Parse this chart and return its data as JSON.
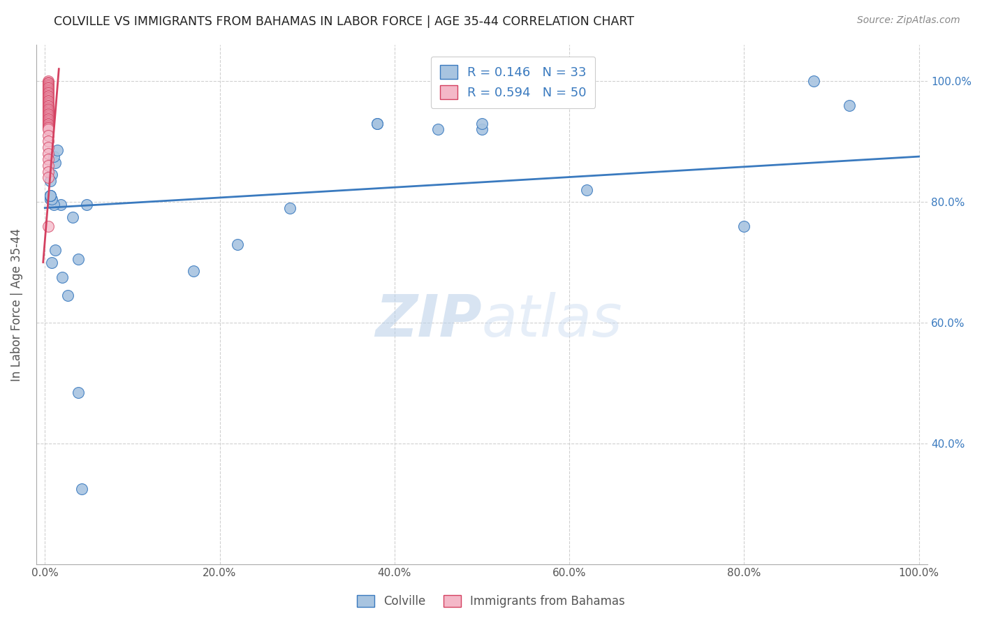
{
  "title": "COLVILLE VS IMMIGRANTS FROM BAHAMAS IN LABOR FORCE | AGE 35-44 CORRELATION CHART",
  "source": "Source: ZipAtlas.com",
  "ylabel": "In Labor Force | Age 35-44",
  "legend_label_blue": "Colville",
  "legend_label_pink": "Immigrants from Bahamas",
  "r_blue": 0.146,
  "n_blue": 33,
  "r_pink": 0.594,
  "n_pink": 50,
  "xlim": [
    -0.01,
    1.01
  ],
  "ylim": [
    0.2,
    1.06
  ],
  "xtick_labels": [
    "0.0%",
    "20.0%",
    "40.0%",
    "60.0%",
    "80.0%",
    "100.0%"
  ],
  "xtick_values": [
    0.0,
    0.2,
    0.4,
    0.6,
    0.8,
    1.0
  ],
  "ytick_labels": [
    "40.0%",
    "60.0%",
    "80.0%",
    "100.0%"
  ],
  "ytick_values": [
    0.4,
    0.6,
    0.8,
    1.0
  ],
  "watermark": "ZIPatlas",
  "blue_scatter_x": [
    0.006,
    0.008,
    0.012,
    0.018,
    0.006,
    0.01,
    0.014,
    0.01,
    0.032,
    0.048,
    0.038,
    0.38,
    0.38,
    0.45,
    0.5,
    0.5,
    0.62,
    0.8,
    0.88,
    0.92,
    0.008,
    0.012,
    0.02,
    0.026,
    0.038,
    0.042,
    0.008,
    0.17,
    0.22,
    0.28,
    0.006,
    0.006,
    0.006
  ],
  "blue_scatter_y": [
    0.805,
    0.845,
    0.865,
    0.795,
    0.835,
    0.875,
    0.885,
    0.795,
    0.775,
    0.795,
    0.705,
    0.93,
    0.93,
    0.92,
    0.92,
    0.93,
    0.82,
    0.76,
    1.0,
    0.96,
    0.7,
    0.72,
    0.675,
    0.645,
    0.485,
    0.325,
    0.805,
    0.685,
    0.73,
    0.79,
    0.81,
    0.81,
    0.81
  ],
  "pink_scatter_x": [
    0.004,
    0.004,
    0.004,
    0.004,
    0.004,
    0.004,
    0.004,
    0.004,
    0.004,
    0.004,
    0.004,
    0.004,
    0.004,
    0.004,
    0.004,
    0.004,
    0.004,
    0.004,
    0.004,
    0.004,
    0.004,
    0.004,
    0.004,
    0.004,
    0.004,
    0.004,
    0.004,
    0.004,
    0.004,
    0.004,
    0.004,
    0.004,
    0.004,
    0.004,
    0.004,
    0.004,
    0.004,
    0.004,
    0.004,
    0.004,
    0.004,
    0.004,
    0.004,
    0.004,
    0.004,
    0.004,
    0.004,
    0.004,
    0.004,
    0.004
  ],
  "pink_scatter_y": [
    1.0,
    0.998,
    0.996,
    0.994,
    0.992,
    0.99,
    0.988,
    0.986,
    0.984,
    0.982,
    0.98,
    0.978,
    0.976,
    0.974,
    0.972,
    0.97,
    0.968,
    0.966,
    0.964,
    0.962,
    0.96,
    0.958,
    0.956,
    0.954,
    0.952,
    0.95,
    0.948,
    0.946,
    0.944,
    0.942,
    0.94,
    0.938,
    0.936,
    0.934,
    0.932,
    0.93,
    0.928,
    0.926,
    0.924,
    0.922,
    0.92,
    0.91,
    0.9,
    0.89,
    0.88,
    0.87,
    0.86,
    0.85,
    0.84,
    0.76
  ],
  "blue_color": "#a8c4e0",
  "pink_color": "#f4b8c8",
  "blue_line_color": "#3a7abf",
  "pink_line_color": "#d44060",
  "grid_color": "#d0d0d0",
  "background_color": "#ffffff",
  "title_color": "#222222",
  "axis_label_color": "#555555",
  "tick_label_color_right": "#3a7abf",
  "tick_label_color_x": "#555555",
  "blue_line_x": [
    0.0,
    1.0
  ],
  "blue_line_y": [
    0.79,
    0.875
  ],
  "pink_line_x": [
    -0.002,
    0.016
  ],
  "pink_line_y": [
    0.7,
    1.02
  ]
}
